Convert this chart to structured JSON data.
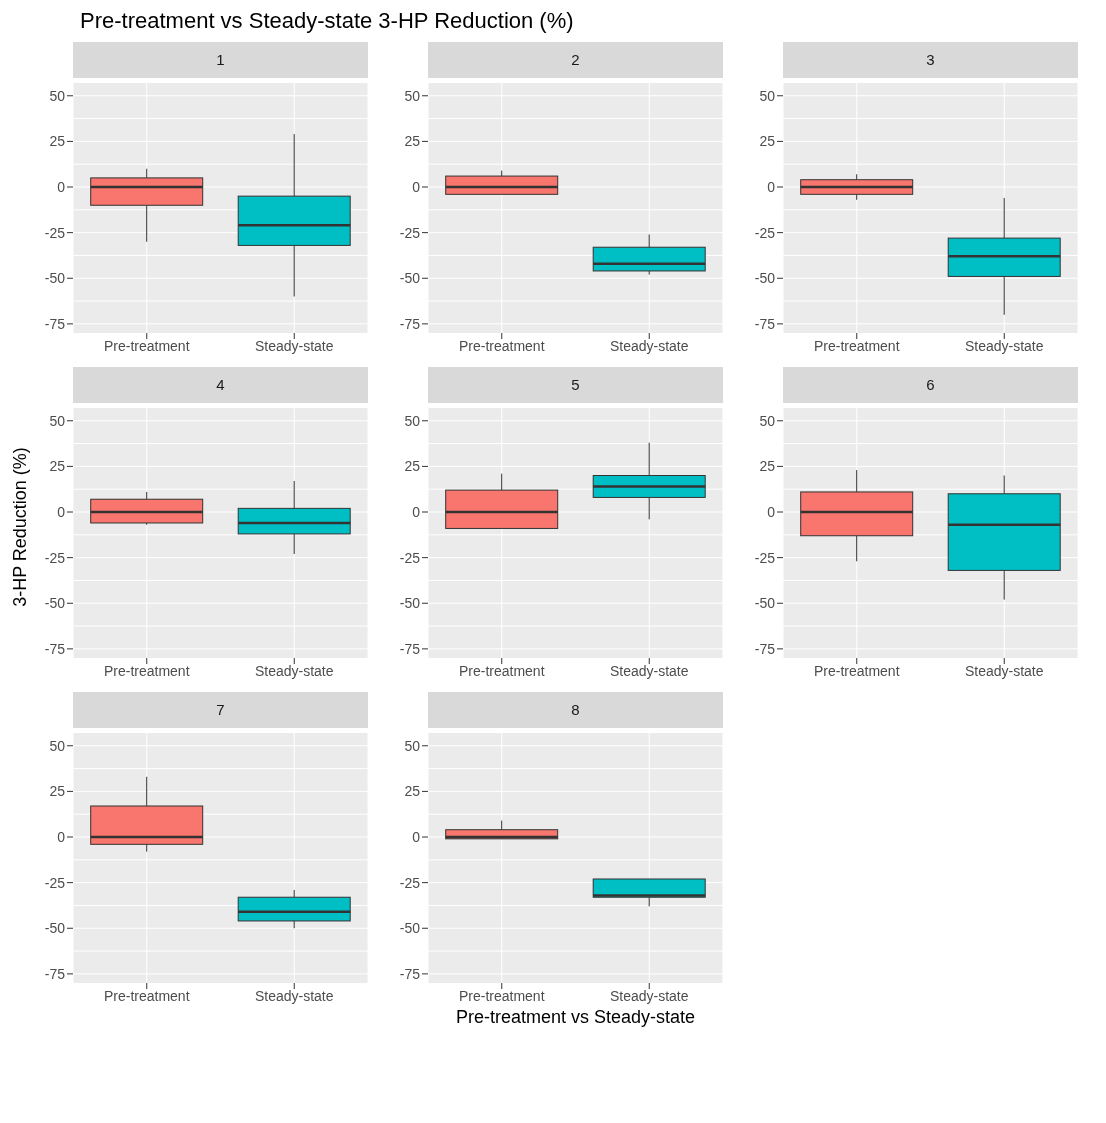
{
  "chart_data": [
    {
      "type": "box",
      "title": "1",
      "annotations": [
        "Pre-treatment vs Steady-state 3-HP Reduction (%)"
      ],
      "categories": [
        "Pre-treatment",
        "Steady-state"
      ],
      "colors": [
        "#f8766d",
        "#00bfc4"
      ],
      "boxes": [
        {
          "low": -30,
          "q1": -10,
          "median": 0,
          "q3": 5,
          "high": 10
        },
        {
          "low": -60,
          "q1": -32,
          "median": -21,
          "q3": -5,
          "high": 29
        }
      ],
      "ylim": [
        -80,
        57
      ],
      "yticks": [
        -75,
        -50,
        -25,
        0,
        25,
        50
      ],
      "grid": true
    },
    {
      "type": "box",
      "title": "2",
      "categories": [
        "Pre-treatment",
        "Steady-state"
      ],
      "colors": [
        "#f8766d",
        "#00bfc4"
      ],
      "boxes": [
        {
          "low": -4,
          "q1": -4,
          "median": 0,
          "q3": 6,
          "high": 9
        },
        {
          "low": -48,
          "q1": -46,
          "median": -42,
          "q3": -33,
          "high": -26
        }
      ],
      "ylim": [
        -80,
        57
      ],
      "yticks": [
        -75,
        -50,
        -25,
        0,
        25,
        50
      ],
      "grid": true
    },
    {
      "type": "box",
      "title": "3",
      "categories": [
        "Pre-treatment",
        "Steady-state"
      ],
      "colors": [
        "#f8766d",
        "#00bfc4"
      ],
      "boxes": [
        {
          "low": -7,
          "q1": -4,
          "median": 0,
          "q3": 4,
          "high": 7
        },
        {
          "low": -70,
          "q1": -49,
          "median": -38,
          "q3": -28,
          "high": -6
        }
      ],
      "ylim": [
        -80,
        57
      ],
      "yticks": [
        -75,
        -50,
        -25,
        0,
        25,
        50
      ],
      "grid": true
    },
    {
      "type": "box",
      "title": "4",
      "ylabel": "3-HP Reduction (%)",
      "categories": [
        "Pre-treatment",
        "Steady-state"
      ],
      "colors": [
        "#f8766d",
        "#00bfc4"
      ],
      "boxes": [
        {
          "low": -7,
          "q1": -6,
          "median": 0,
          "q3": 7,
          "high": 11
        },
        {
          "low": -23,
          "q1": -12,
          "median": -6,
          "q3": 2,
          "high": 17
        }
      ],
      "ylim": [
        -80,
        57
      ],
      "yticks": [
        -75,
        -50,
        -25,
        0,
        25,
        50
      ],
      "grid": true
    },
    {
      "type": "box",
      "title": "5",
      "categories": [
        "Pre-treatment",
        "Steady-state"
      ],
      "colors": [
        "#f8766d",
        "#00bfc4"
      ],
      "boxes": [
        {
          "low": -9,
          "q1": -9,
          "median": 0,
          "q3": 12,
          "high": 21
        },
        {
          "low": -4,
          "q1": 8,
          "median": 14,
          "q3": 20,
          "high": 38
        }
      ],
      "ylim": [
        -80,
        57
      ],
      "yticks": [
        -75,
        -50,
        -25,
        0,
        25,
        50
      ],
      "grid": true
    },
    {
      "type": "box",
      "title": "6",
      "categories": [
        "Pre-treatment",
        "Steady-state"
      ],
      "colors": [
        "#f8766d",
        "#00bfc4"
      ],
      "boxes": [
        {
          "low": -27,
          "q1": -13,
          "median": 0,
          "q3": 11,
          "high": 23
        },
        {
          "low": -48,
          "q1": -32,
          "median": -7,
          "q3": 10,
          "high": 20
        }
      ],
      "ylim": [
        -80,
        57
      ],
      "yticks": [
        -75,
        -50,
        -25,
        0,
        25,
        50
      ],
      "grid": true
    },
    {
      "type": "box",
      "title": "7",
      "categories": [
        "Pre-treatment",
        "Steady-state"
      ],
      "colors": [
        "#f8766d",
        "#00bfc4"
      ],
      "boxes": [
        {
          "low": -8,
          "q1": -4,
          "median": 0,
          "q3": 17,
          "high": 33
        },
        {
          "low": -50,
          "q1": -46,
          "median": -41,
          "q3": -33,
          "high": -29
        }
      ],
      "ylim": [
        -80,
        57
      ],
      "yticks": [
        -75,
        -50,
        -25,
        0,
        25,
        50
      ],
      "grid": true
    },
    {
      "type": "box",
      "title": "8",
      "xlabel": "Pre-treatment vs Steady-state",
      "categories": [
        "Pre-treatment",
        "Steady-state"
      ],
      "colors": [
        "#f8766d",
        "#00bfc4"
      ],
      "boxes": [
        {
          "low": -1,
          "q1": -1,
          "median": 0,
          "q3": 4,
          "high": 9
        },
        {
          "low": -38,
          "q1": -33,
          "median": -32,
          "q3": -23,
          "high": -23
        }
      ],
      "ylim": [
        -80,
        57
      ],
      "yticks": [
        -75,
        -50,
        -25,
        0,
        25,
        50
      ],
      "grid": true
    }
  ]
}
